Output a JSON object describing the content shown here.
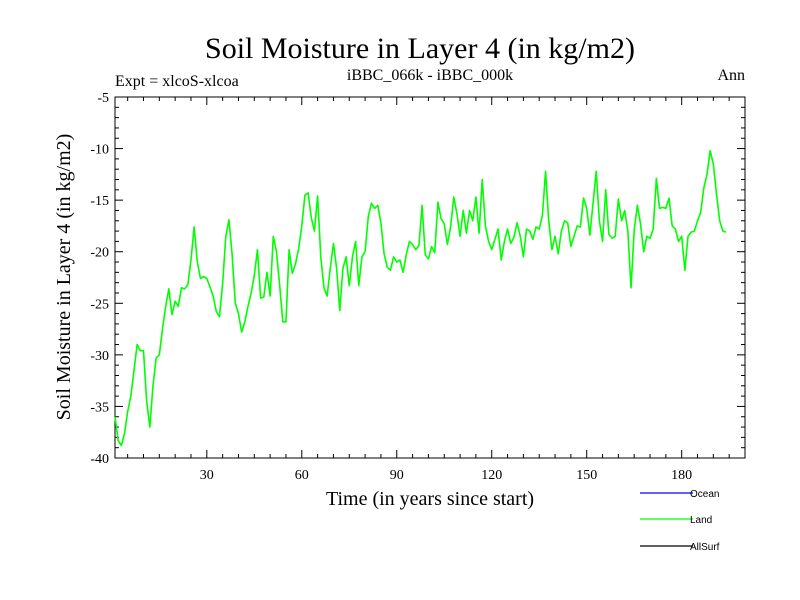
{
  "chart_data": {
    "type": "line",
    "title": "Soil Moisture in Layer 4 (in kg/m2)",
    "subtitle_left": "Expt = xlcoS-xlcoa",
    "subtitle_center": "iBBC_066k - iBBC_000k",
    "subtitle_right": "Ann",
    "xlabel": "Time (in years since start)",
    "ylabel": "Soil Moisture in Layer 4 (in kg/m2)",
    "xlim": [
      1,
      200
    ],
    "ylim": [
      -40,
      -5
    ],
    "xticks": [
      30,
      60,
      90,
      120,
      150,
      180
    ],
    "yticks": [
      -40,
      -35,
      -30,
      -25,
      -20,
      -15,
      -10,
      -5
    ],
    "xtick_labels": [
      "30",
      "60",
      "90",
      "120",
      "150",
      "180"
    ],
    "ytick_labels": [
      "-40",
      "-35",
      "-30",
      "-25",
      "-20",
      "-15",
      "-10",
      "-5"
    ],
    "legend": [
      {
        "name": "Ocean",
        "color": "#0000ff"
      },
      {
        "name": "Land",
        "color": "#00ff00"
      },
      {
        "name": "AllSurf",
        "color": "#000000"
      }
    ],
    "series": [
      {
        "name": "Land",
        "color": "#00ff00",
        "x_start": 1,
        "values": [
          -36.0,
          -38.3,
          -38.8,
          -37.6,
          -35.5,
          -34.0,
          -31.5,
          -29.0,
          -29.6,
          -29.6,
          -34.5,
          -37.0,
          -33.0,
          -30.3,
          -30.0,
          -27.5,
          -25.3,
          -23.6,
          -26.1,
          -24.8,
          -25.3,
          -23.5,
          -23.6,
          -23.2,
          -20.8,
          -17.6,
          -21.0,
          -22.6,
          -22.4,
          -22.6,
          -23.4,
          -24.3,
          -25.8,
          -26.3,
          -23.1,
          -18.5,
          -16.9,
          -20.3,
          -25.0,
          -26.0,
          -27.8,
          -26.8,
          -25.3,
          -24.0,
          -22.3,
          -19.8,
          -24.5,
          -24.4,
          -22.0,
          -24.3,
          -18.5,
          -20.0,
          -23.2,
          -26.8,
          -26.8,
          -19.8,
          -22.1,
          -21.2,
          -19.7,
          -17.5,
          -14.5,
          -14.3,
          -16.7,
          -18.0,
          -14.6,
          -20.5,
          -23.5,
          -24.3,
          -21.6,
          -19.2,
          -21.6,
          -25.7,
          -21.6,
          -20.5,
          -23.3,
          -20.5,
          -19.0,
          -23.3,
          -20.5,
          -20.0,
          -16.6,
          -15.3,
          -15.8,
          -15.5,
          -17.2,
          -20.2,
          -21.5,
          -21.8,
          -20.5,
          -21.0,
          -20.8,
          -22.0,
          -20.3,
          -19.0,
          -19.3,
          -19.8,
          -19.4,
          -15.5,
          -20.3,
          -20.7,
          -19.5,
          -20.1,
          -15.2,
          -16.8,
          -17.3,
          -19.3,
          -17.6,
          -14.7,
          -16.3,
          -18.5,
          -16.0,
          -18.2,
          -16.0,
          -17.0,
          -14.7,
          -18.2,
          -13.0,
          -17.5,
          -19.0,
          -19.8,
          -18.8,
          -17.8,
          -20.8,
          -19.0,
          -17.8,
          -19.2,
          -18.6,
          -17.2,
          -18.5,
          -20.5,
          -17.8,
          -18.0,
          -18.8,
          -17.6,
          -17.8,
          -16.5,
          -12.2,
          -17.0,
          -19.8,
          -18.5,
          -20.2,
          -18.0,
          -17.0,
          -17.2,
          -19.5,
          -18.5,
          -17.5,
          -17.6,
          -14.8,
          -15.8,
          -18.4,
          -15.3,
          -12.2,
          -17.0,
          -19.0,
          -14.0,
          -18.3,
          -18.7,
          -18.5,
          -14.9,
          -17.0,
          -16.0,
          -18.0,
          -23.5,
          -17.9,
          -15.5,
          -17.3,
          -20.0,
          -18.5,
          -18.7,
          -17.8,
          -12.9,
          -15.8,
          -15.7,
          -15.8,
          -14.8,
          -17.5,
          -17.8,
          -19.0,
          -18.5,
          -21.8,
          -18.5,
          -18.1,
          -18.0,
          -17.0,
          -16.2,
          -13.8,
          -12.5,
          -10.2,
          -11.5,
          -14.4,
          -17.0,
          -18.0,
          -18.1
        ]
      }
    ]
  }
}
